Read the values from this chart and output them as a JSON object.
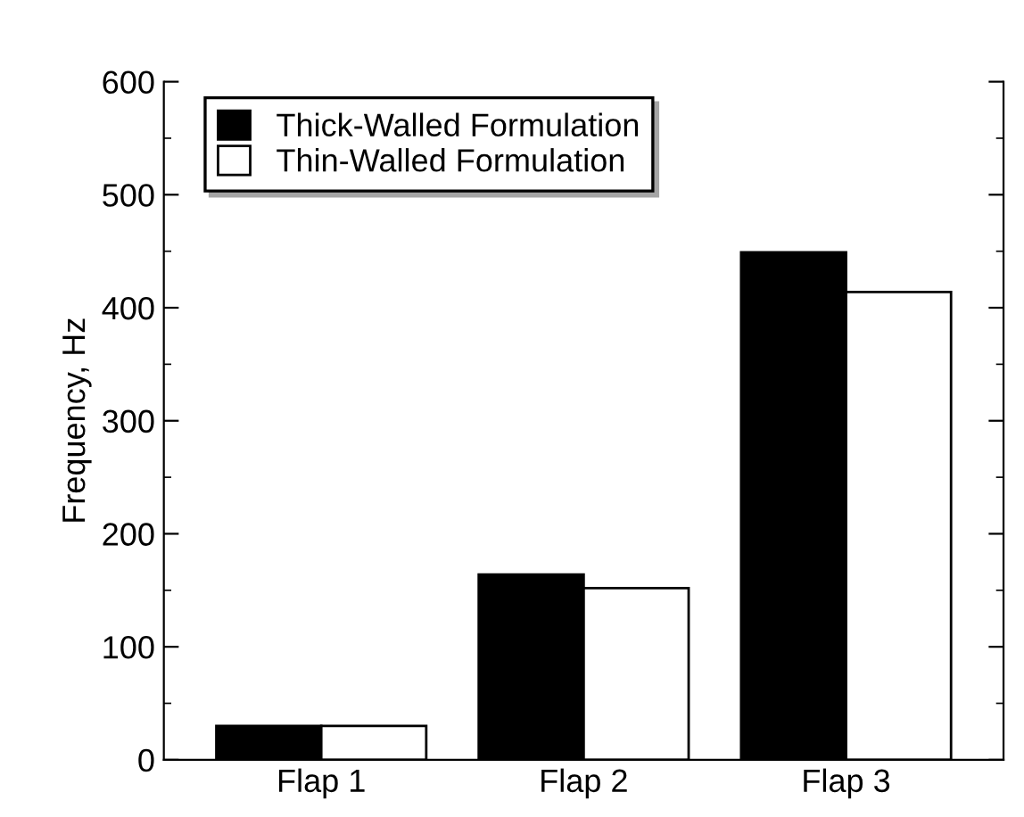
{
  "chart_data": {
    "type": "bar",
    "ylabel": "Frequency, Hz",
    "categories": [
      "Flap 1",
      "Flap 2",
      "Flap 3"
    ],
    "series": [
      {
        "name": "Thick-Walled Formulation",
        "color": "#000000",
        "values": [
          30,
          164,
          449
        ]
      },
      {
        "name": "Thin-Walled Formulation",
        "color": "#ffffff",
        "values": [
          30,
          152,
          414
        ]
      }
    ],
    "ylim": [
      0,
      600
    ],
    "yticks": [
      0,
      100,
      200,
      300,
      400,
      500,
      600
    ],
    "grid": false,
    "legend": "top left"
  }
}
